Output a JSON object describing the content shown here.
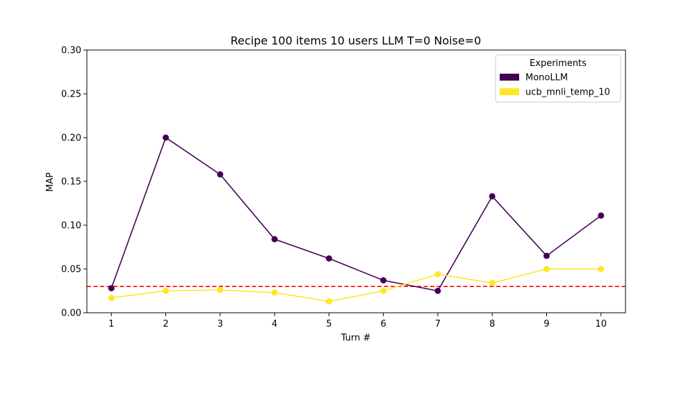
{
  "chart_data": {
    "type": "line",
    "title": "Recipe 100 items 10 users LLM T=0 Noise=0",
    "xlabel": "Turn #",
    "ylabel": "MAP",
    "x": [
      1,
      2,
      3,
      4,
      5,
      6,
      7,
      8,
      9,
      10
    ],
    "xlim": [
      0.55,
      10.45
    ],
    "ylim": [
      0,
      0.3
    ],
    "yticks": [
      "0.00",
      "0.05",
      "0.10",
      "0.15",
      "0.20",
      "0.25",
      "0.30"
    ],
    "xticks": [
      "1",
      "2",
      "3",
      "4",
      "5",
      "6",
      "7",
      "8",
      "9",
      "10"
    ],
    "series": [
      {
        "name": "MonoLLM",
        "color": "#440154",
        "values": [
          0.028,
          0.2,
          0.158,
          0.084,
          0.062,
          0.037,
          0.025,
          0.133,
          0.065,
          0.111
        ]
      },
      {
        "name": "ucb_mnli_temp_10",
        "color": "#fde725",
        "values": [
          0.017,
          0.025,
          0.026,
          0.023,
          0.013,
          0.025,
          0.044,
          0.034,
          0.05,
          0.05
        ]
      }
    ],
    "reference_line": {
      "value": 0.03,
      "color": "#ff0000",
      "style": "dashed"
    },
    "legend": {
      "title": "Experiments",
      "placement": "top-right"
    },
    "grid": false
  }
}
